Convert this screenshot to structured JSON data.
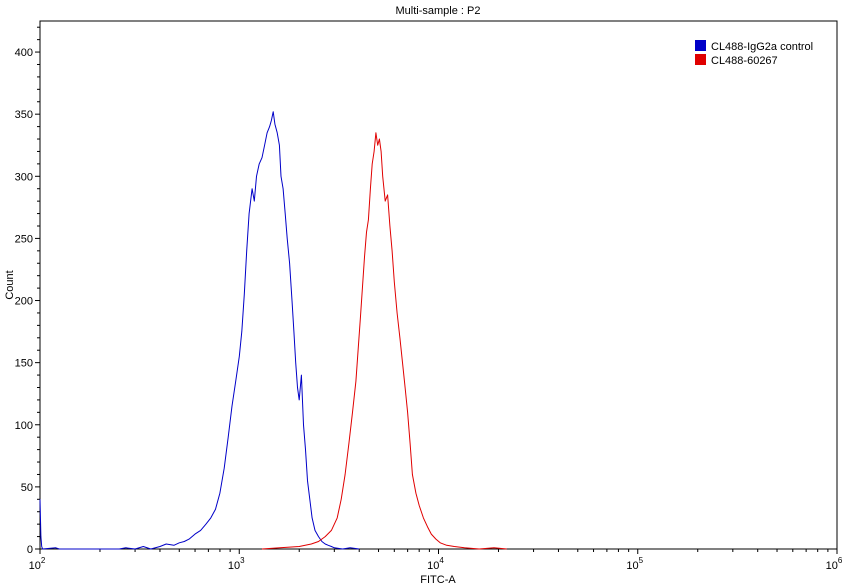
{
  "chart_data": {
    "type": "line",
    "title": "Multi-sample : P2",
    "xlabel": "FITC-A",
    "ylabel": "Count",
    "x_scale": "log",
    "xlim": [
      100,
      1000000
    ],
    "ylim": [
      0,
      425
    ],
    "x_ticks": [
      {
        "value": 100,
        "base": "10",
        "exp": "2"
      },
      {
        "value": 1000,
        "base": "10",
        "exp": "3"
      },
      {
        "value": 10000,
        "base": "10",
        "exp": "4"
      },
      {
        "value": 100000,
        "base": "10",
        "exp": "5"
      },
      {
        "value": 1000000,
        "base": "10",
        "exp": "6"
      }
    ],
    "y_ticks": [
      0,
      50,
      100,
      150,
      200,
      250,
      300,
      350,
      400
    ],
    "legend_position": "top-right",
    "series": [
      {
        "name": "CL488-IgG2a control",
        "color": "#0000c8",
        "points": [
          [
            100,
            40
          ],
          [
            101,
            10
          ],
          [
            102,
            2
          ],
          [
            103,
            0
          ],
          [
            120,
            1
          ],
          [
            125,
            0
          ],
          [
            250,
            0
          ],
          [
            270,
            1
          ],
          [
            300,
            0
          ],
          [
            330,
            2
          ],
          [
            360,
            0
          ],
          [
            400,
            2
          ],
          [
            430,
            4
          ],
          [
            470,
            3
          ],
          [
            500,
            5
          ],
          [
            530,
            6
          ],
          [
            560,
            8
          ],
          [
            600,
            12
          ],
          [
            640,
            15
          ],
          [
            680,
            20
          ],
          [
            720,
            25
          ],
          [
            760,
            32
          ],
          [
            800,
            45
          ],
          [
            840,
            65
          ],
          [
            880,
            90
          ],
          [
            920,
            115
          ],
          [
            960,
            135
          ],
          [
            1000,
            155
          ],
          [
            1030,
            175
          ],
          [
            1060,
            205
          ],
          [
            1090,
            240
          ],
          [
            1120,
            270
          ],
          [
            1160,
            290
          ],
          [
            1190,
            280
          ],
          [
            1220,
            300
          ],
          [
            1260,
            310
          ],
          [
            1300,
            315
          ],
          [
            1340,
            325
          ],
          [
            1380,
            335
          ],
          [
            1420,
            340
          ],
          [
            1450,
            345
          ],
          [
            1480,
            352
          ],
          [
            1510,
            342
          ],
          [
            1550,
            335
          ],
          [
            1590,
            325
          ],
          [
            1620,
            300
          ],
          [
            1660,
            290
          ],
          [
            1700,
            270
          ],
          [
            1740,
            250
          ],
          [
            1790,
            230
          ],
          [
            1840,
            200
          ],
          [
            1880,
            175
          ],
          [
            1920,
            150
          ],
          [
            1960,
            130
          ],
          [
            2000,
            120
          ],
          [
            2050,
            140
          ],
          [
            2100,
            100
          ],
          [
            2150,
            80
          ],
          [
            2200,
            55
          ],
          [
            2260,
            40
          ],
          [
            2320,
            25
          ],
          [
            2400,
            15
          ],
          [
            2500,
            10
          ],
          [
            2600,
            6
          ],
          [
            2700,
            4
          ],
          [
            2800,
            3
          ],
          [
            2900,
            2
          ],
          [
            3000,
            1
          ],
          [
            3300,
            0
          ],
          [
            3600,
            1
          ],
          [
            4000,
            0
          ]
        ]
      },
      {
        "name": "CL488-60267",
        "color": "#e00000",
        "points": [
          [
            1300,
            0
          ],
          [
            1600,
            1
          ],
          [
            2000,
            2
          ],
          [
            2300,
            4
          ],
          [
            2500,
            6
          ],
          [
            2700,
            10
          ],
          [
            2900,
            15
          ],
          [
            3100,
            25
          ],
          [
            3250,
            40
          ],
          [
            3400,
            60
          ],
          [
            3550,
            85
          ],
          [
            3700,
            110
          ],
          [
            3850,
            135
          ],
          [
            3950,
            160
          ],
          [
            4050,
            185
          ],
          [
            4150,
            210
          ],
          [
            4250,
            235
          ],
          [
            4350,
            255
          ],
          [
            4450,
            265
          ],
          [
            4550,
            290
          ],
          [
            4650,
            310
          ],
          [
            4750,
            320
          ],
          [
            4850,
            335
          ],
          [
            4950,
            325
          ],
          [
            5050,
            330
          ],
          [
            5150,
            320
          ],
          [
            5250,
            300
          ],
          [
            5400,
            280
          ],
          [
            5550,
            285
          ],
          [
            5700,
            260
          ],
          [
            5850,
            240
          ],
          [
            6000,
            215
          ],
          [
            6200,
            190
          ],
          [
            6400,
            170
          ],
          [
            6600,
            150
          ],
          [
            6800,
            130
          ],
          [
            7000,
            110
          ],
          [
            7200,
            85
          ],
          [
            7400,
            60
          ],
          [
            7700,
            45
          ],
          [
            8000,
            35
          ],
          [
            8400,
            25
          ],
          [
            8800,
            18
          ],
          [
            9200,
            12
          ],
          [
            9700,
            8
          ],
          [
            10200,
            5
          ],
          [
            11000,
            3
          ],
          [
            12000,
            2
          ],
          [
            13500,
            1
          ],
          [
            16000,
            0
          ],
          [
            19000,
            1
          ],
          [
            22000,
            0
          ]
        ]
      }
    ]
  }
}
